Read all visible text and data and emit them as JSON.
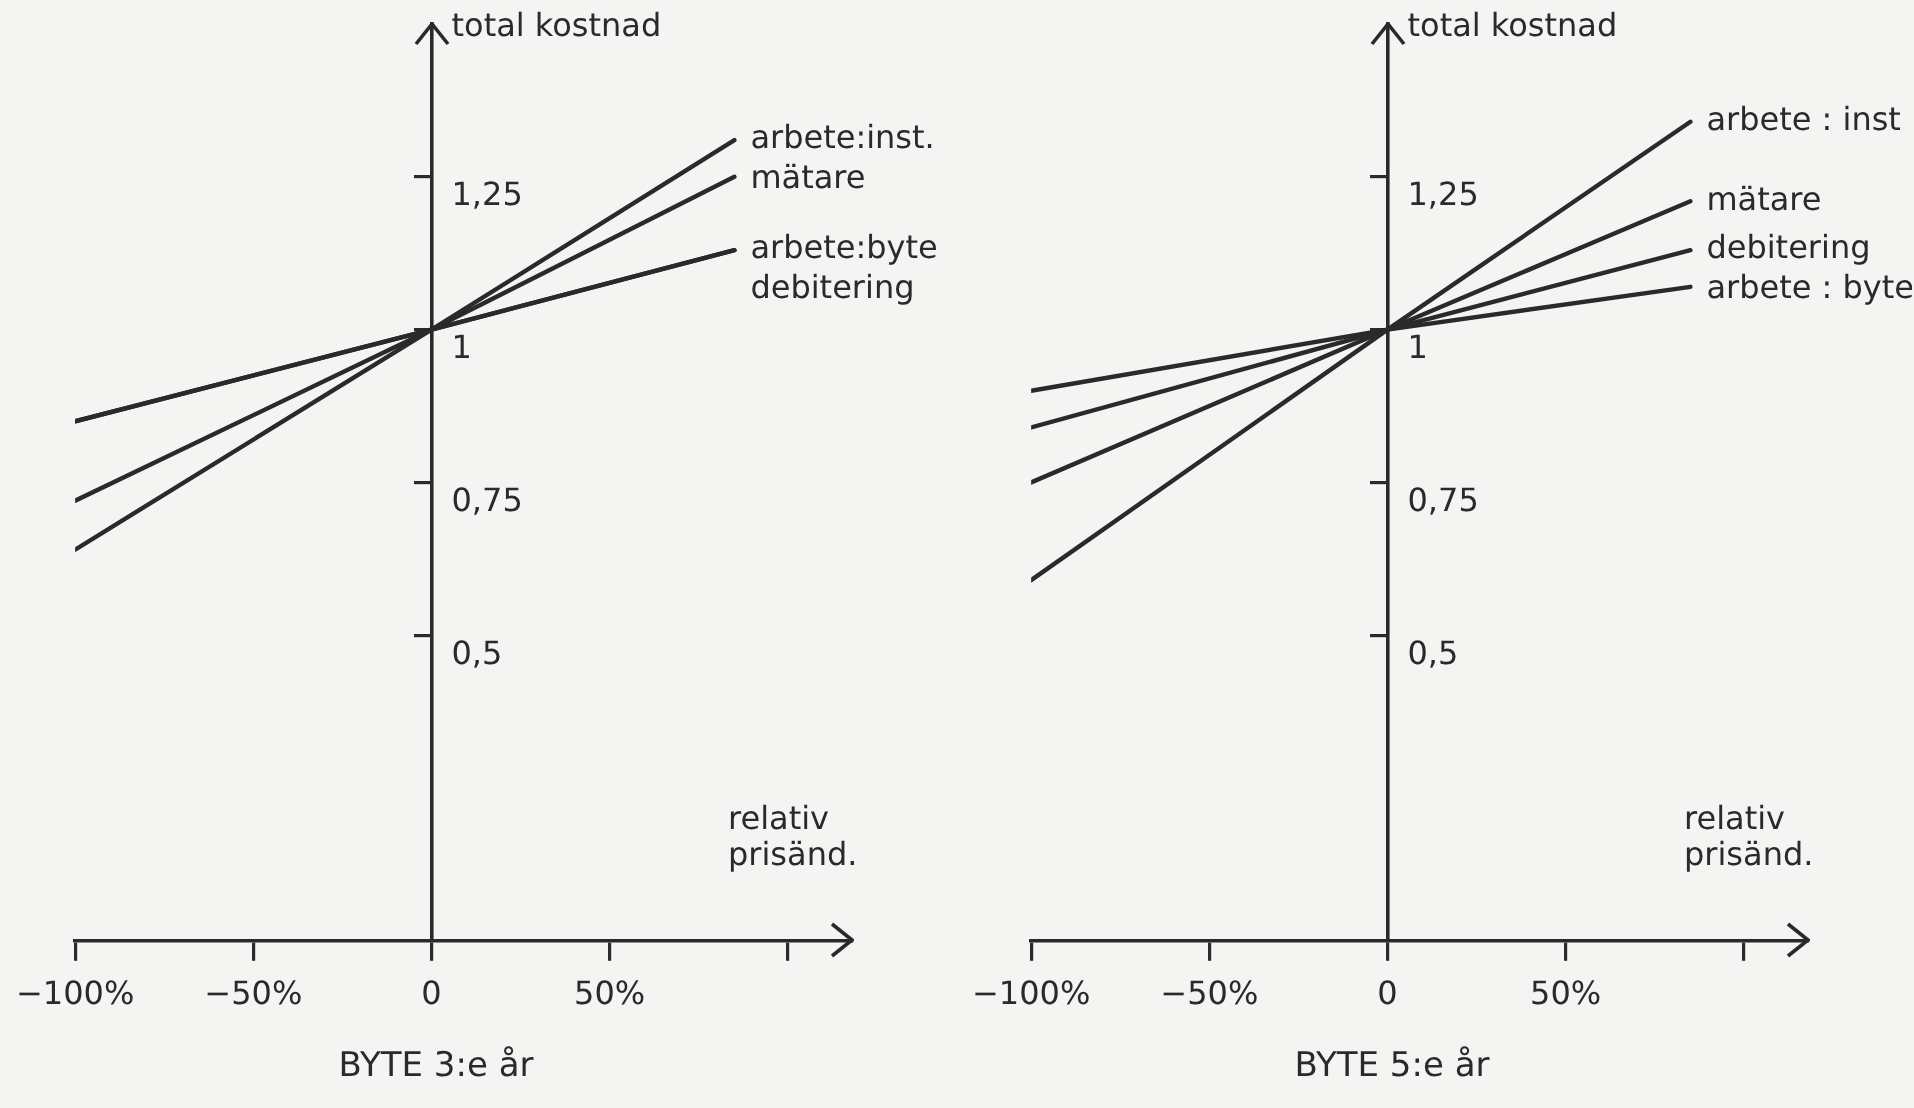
{
  "chart_data": [
    {
      "type": "line",
      "title": "BYTE 3:e år",
      "xlabel": "relativ prisänd.",
      "ylabel": "total kostnad",
      "x": [
        -100,
        0,
        85
      ],
      "series": [
        {
          "name": "arbete:inst.",
          "color": "#2a2a2a",
          "values": [
            0.64,
            1,
            1.31
          ]
        },
        {
          "name": "mätare",
          "color": "#2a2a2a",
          "values": [
            0.72,
            1,
            1.25
          ]
        },
        {
          "name": "arbete:byte",
          "color": "#2a2a2a",
          "values": [
            0.85,
            1,
            1.13
          ]
        },
        {
          "name": "debitering",
          "color": "#2a2a2a",
          "values": [
            0.85,
            1,
            1.13
          ]
        }
      ],
      "xlim": [
        -100,
        118
      ],
      "ylim": [
        0,
        1.5
      ],
      "xticks": [
        {
          "value": -100,
          "label": "−100%"
        },
        {
          "value": -50,
          "label": "−50%"
        },
        0,
        {
          "value": 50,
          "label": "50%"
        },
        {
          "value": 100,
          "label": null
        }
      ],
      "yticks": [
        {
          "value": 0.5,
          "label": "0,5"
        },
        {
          "value": 0.75,
          "label": "0,75"
        },
        1,
        {
          "value": 1.25,
          "label": "1,25"
        }
      ],
      "grid": false,
      "legend": false,
      "marker": "none",
      "line_style": "solid"
    },
    {
      "type": "line",
      "title": "BYTE 5:e år",
      "xlabel": "relativ prisänd.",
      "ylabel": "total kostnad",
      "x": [
        -100,
        0,
        85
      ],
      "series": [
        {
          "name": "arbete : inst",
          "color": "#2a2a2a",
          "values": [
            0.59,
            1,
            1.34
          ]
        },
        {
          "name": "mätare",
          "color": "#2a2a2a",
          "values": [
            0.75,
            1,
            1.21
          ]
        },
        {
          "name": "debitering",
          "color": "#2a2a2a",
          "values": [
            0.84,
            1,
            1.13
          ]
        },
        {
          "name": "arbete : byte",
          "color": "#2a2a2a",
          "values": [
            0.9,
            1,
            1.07
          ]
        }
      ],
      "xlim": [
        -100,
        118
      ],
      "ylim": [
        0,
        1.5
      ],
      "xticks": [
        {
          "value": -100,
          "label": "−100%"
        },
        {
          "value": -50,
          "label": "−50%"
        },
        0,
        {
          "value": 50,
          "label": "50%"
        },
        {
          "value": 100,
          "label": null
        }
      ],
      "yticks": [
        {
          "value": 0.5,
          "label": "0,5"
        },
        {
          "value": 0.75,
          "label": "0,75"
        },
        1,
        {
          "value": 1.25,
          "label": "1,25"
        }
      ],
      "grid": false,
      "legend": false,
      "marker": "none",
      "line_style": "solid"
    }
  ]
}
